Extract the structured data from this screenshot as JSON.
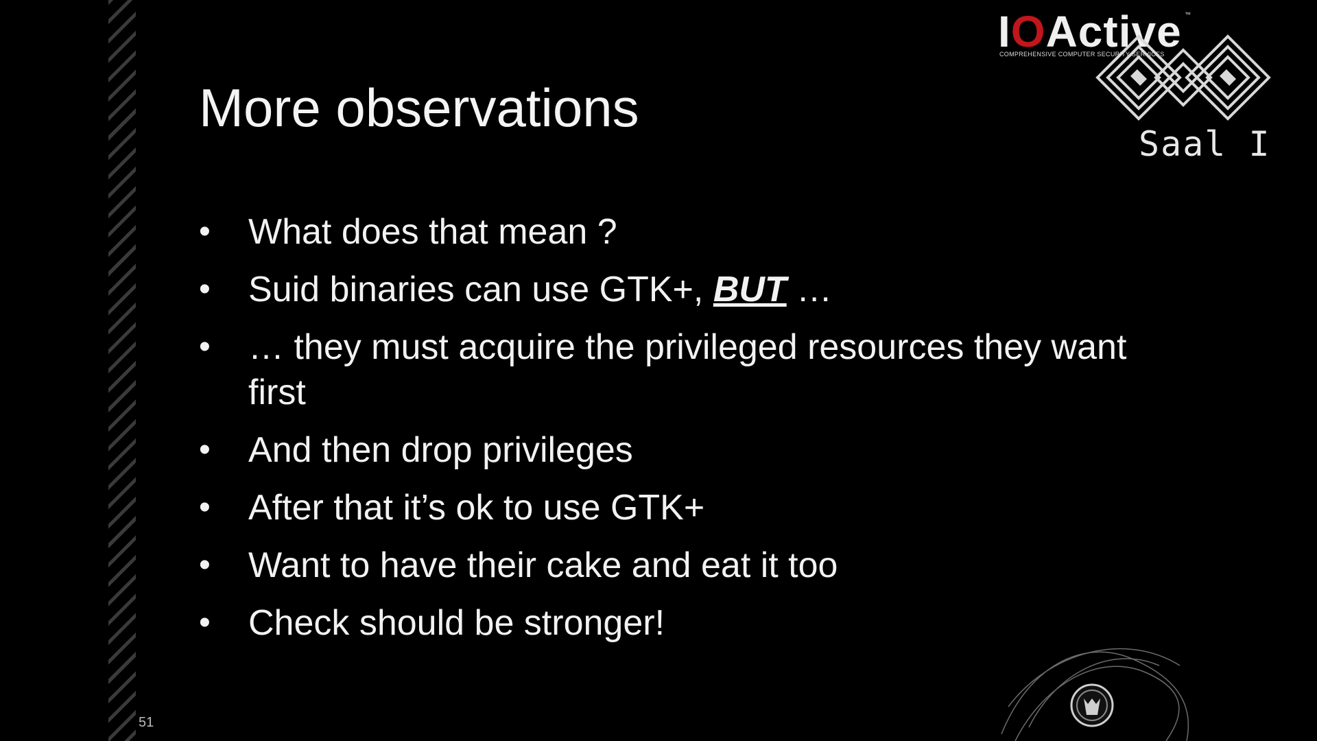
{
  "brand": {
    "name_pre": "I",
    "name_o": "O",
    "name_post": "Active",
    "tm": "™",
    "tagline": "COMPREHENSIVE COMPUTER SECURITY SERVICES"
  },
  "room": {
    "label": "Saal I"
  },
  "slide": {
    "title": "More observations",
    "bullets": [
      {
        "text": "What does that mean ?"
      },
      {
        "pre": "Suid binaries can use GTK+, ",
        "emphasis": "BUT",
        "post": " …"
      },
      {
        "text": "… they must acquire the privileged resources they want first"
      },
      {
        "text": "And then drop privileges"
      },
      {
        "text": "After that it’s ok to use GTK+"
      },
      {
        "text": "Want to have their cake and eat it too"
      },
      {
        "text": "Check should be stronger!"
      }
    ],
    "page_number": "51"
  },
  "colors": {
    "background": "#000000",
    "text": "#f2f2f2",
    "brand_accent": "#c0161c",
    "stripe": "#3a3a3a"
  },
  "icons": {
    "conference_logo": "diamond-knot-logo-icon",
    "mascot": "smoke-mascot-icon"
  }
}
